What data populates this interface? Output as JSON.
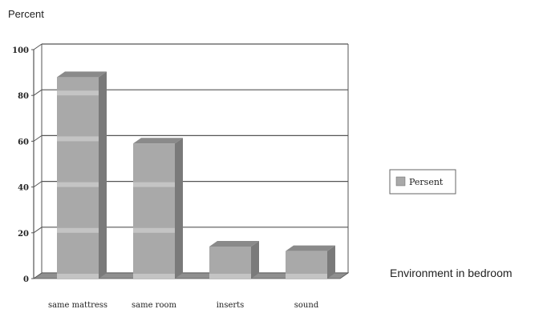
{
  "chart_data": {
    "type": "bar",
    "title": "",
    "ylabel": "Percent",
    "xlabel": "Environment in bedroom",
    "categories": [
      "same mattress",
      "same room",
      "inserts",
      "sound"
    ],
    "series": [
      {
        "name": "Persent",
        "values": [
          88,
          59,
          14,
          12
        ]
      }
    ],
    "ylim": [
      0,
      100
    ],
    "yticks": [
      0,
      20,
      40,
      60,
      80,
      100
    ],
    "grid": true,
    "legend_position": "right",
    "colors": {
      "bar_front": "#a9a9a9",
      "bar_top": "#8a8a8a",
      "bar_side": "#7a7a7a",
      "bar_band": "#c4c4c4",
      "floor": "#8f8f8f",
      "axis": "#555555",
      "grid": "#555555"
    }
  }
}
